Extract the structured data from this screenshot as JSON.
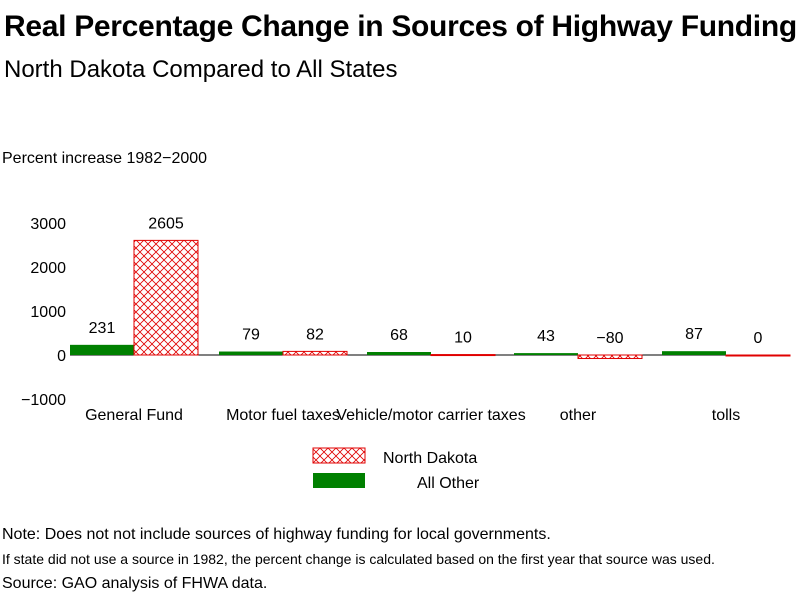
{
  "title": "Real Percentage Change in Sources of Highway Funding",
  "subtitle": "North Dakota Compared to All States",
  "colors": {
    "north_dakota": "#e00000",
    "all_other": "#008000"
  },
  "chart_data": {
    "type": "bar",
    "title": "Real Percentage Change in Sources of Highway Funding",
    "subtitle": "North Dakota Compared to All States",
    "ylabel": "Percent increase 1982−2000",
    "xlabel": "",
    "ylim": [
      -1000,
      3000
    ],
    "yticks": [
      "3000",
      "2000",
      "1000",
      "0",
      "−1000"
    ],
    "ytick_values": [
      3000,
      2000,
      1000,
      0,
      -1000
    ],
    "categories": [
      "General Fund",
      "Motor fuel taxes",
      "Vehicle/motor carrier taxes",
      "other",
      "tolls"
    ],
    "series": [
      {
        "name": "All Other",
        "values": [
          231,
          79,
          68,
          43,
          87
        ],
        "labels": [
          "231",
          "79",
          "68",
          "43",
          "87"
        ]
      },
      {
        "name": "North Dakota",
        "values": [
          2605,
          82,
          10,
          -80,
          0
        ],
        "labels": [
          "2605",
          "82",
          "10",
          "−80",
          "0"
        ]
      }
    ],
    "legend": [
      "North Dakota",
      "All Other"
    ],
    "legend_position": "bottom-center",
    "grid": false
  },
  "notes": {
    "line1": "Note: Does not not include sources of highway funding for local governments.",
    "line2": "If state did not use a source in 1982, the percent change is calculated based on the first year that source was used.",
    "line3": "Source: GAO analysis of FHWA data."
  }
}
